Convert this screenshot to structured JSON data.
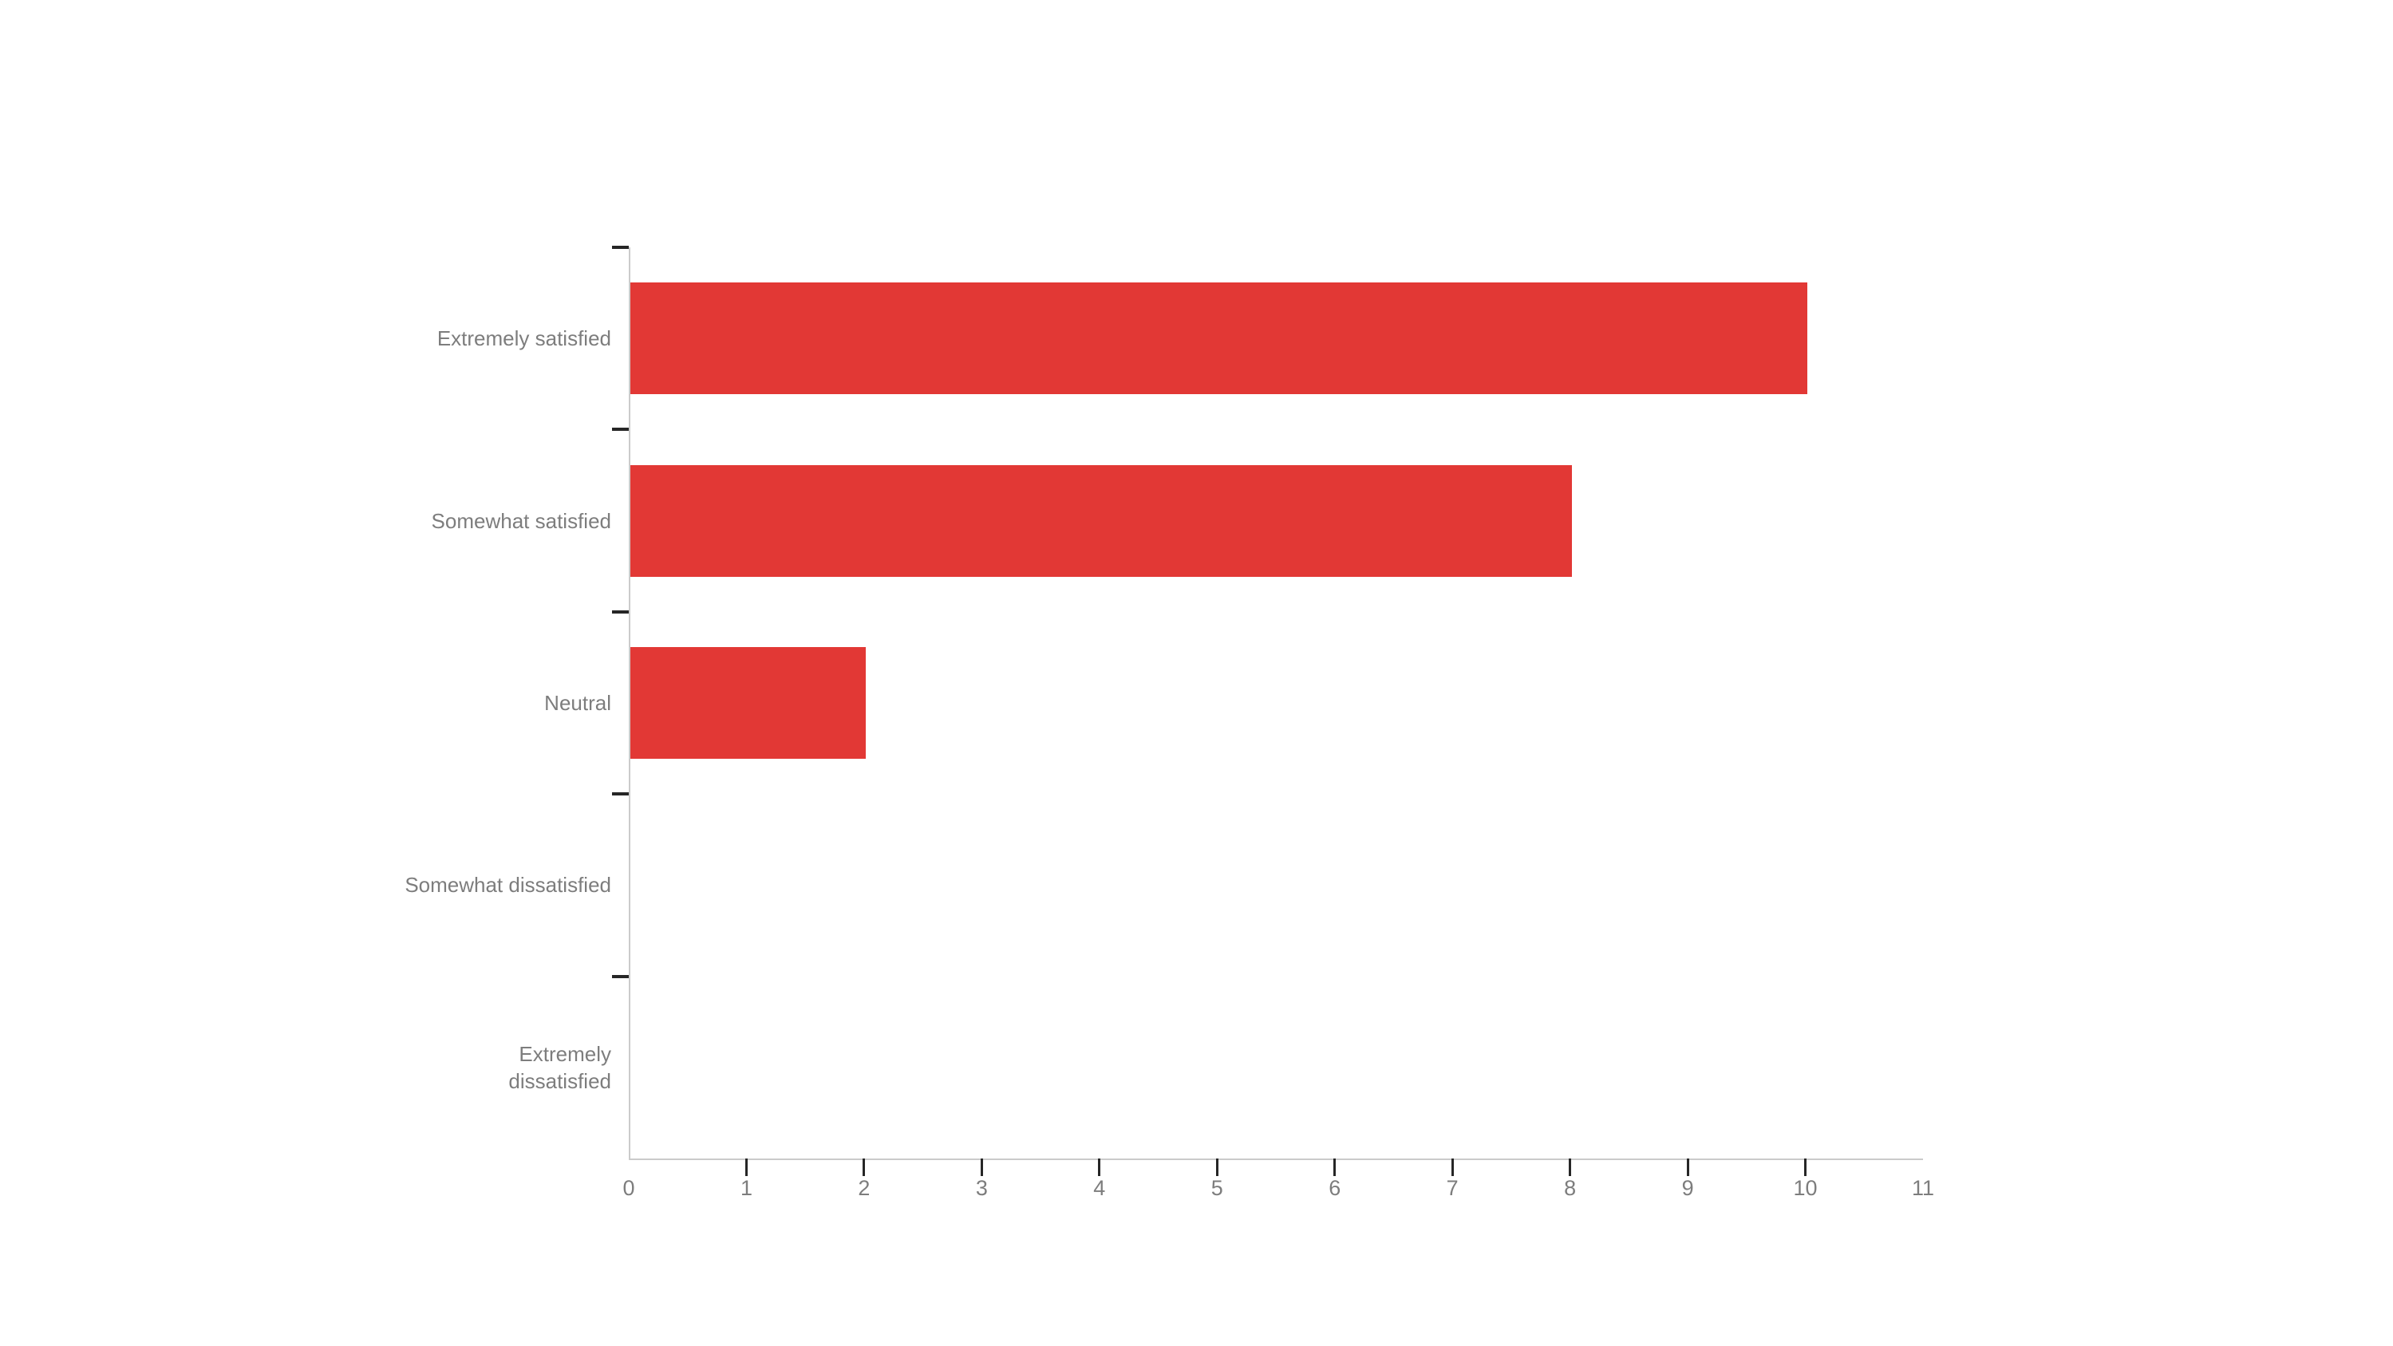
{
  "chart_data": {
    "type": "bar",
    "orientation": "horizontal",
    "title": "",
    "xlabel": "",
    "ylabel": "",
    "categories": [
      "Extremely satisfied",
      "Somewhat satisfied",
      "Neutral",
      "Somewhat dissatisfied",
      "Extremely dissatisfied"
    ],
    "label_lines": [
      [
        "Extremely satisfied"
      ],
      [
        "Somewhat satisfied"
      ],
      [
        "Neutral"
      ],
      [
        "Somewhat dissatisfied"
      ],
      [
        "Extremely",
        "dissatisfied"
      ]
    ],
    "values": [
      10,
      8,
      2,
      0,
      0
    ],
    "xlim": [
      0,
      11
    ],
    "x_ticks": [
      1,
      2,
      3,
      4,
      5,
      6,
      7,
      8,
      9,
      10
    ],
    "x_tick_labels": [
      "0",
      "1",
      "2",
      "3",
      "4",
      "5",
      "6",
      "7",
      "8",
      "9",
      "10",
      "11"
    ],
    "grid": "off",
    "legend": "none",
    "colors": {
      "bar": "#e23835",
      "axis_line": "#cbcbcb",
      "tick_mark": "#262626",
      "label_text": "#7d7d7d",
      "background": "#ffffff"
    }
  }
}
